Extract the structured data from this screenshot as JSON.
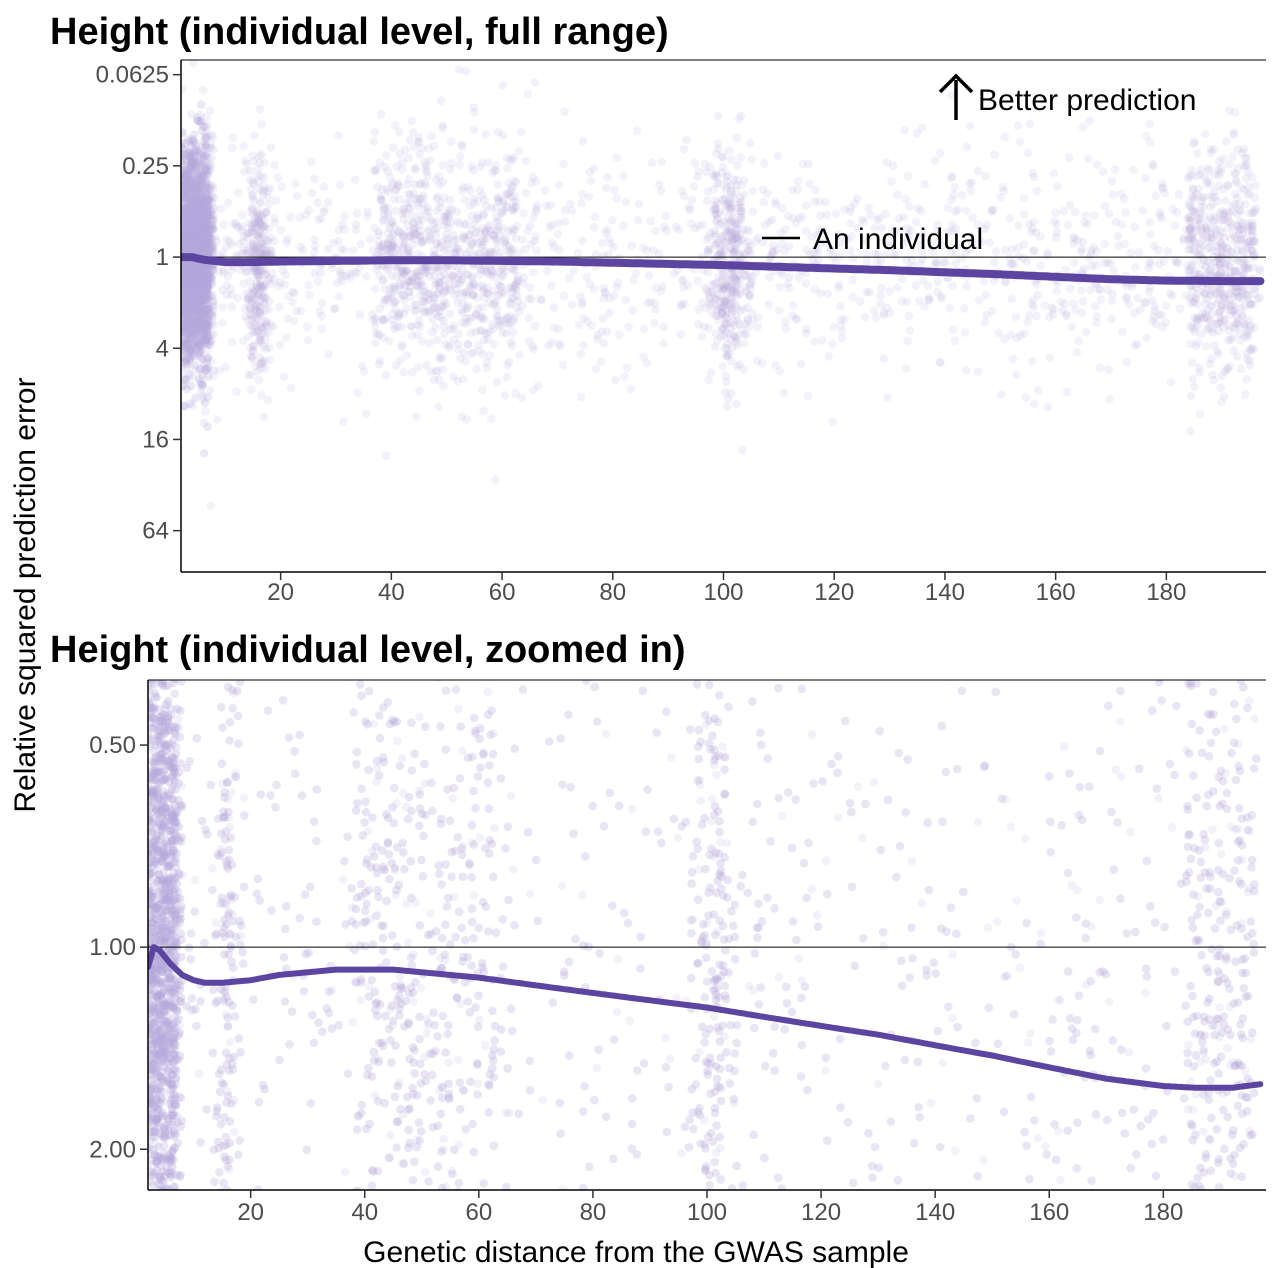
{
  "chart_data": [
    {
      "type": "scatter",
      "title": "Height (individual level, full range)",
      "xlabel": "Genetic distance from the GWAS sample",
      "ylabel": "Relative squared prediction error",
      "y_scale": "log2, reversed",
      "xlim": [
        2,
        198
      ],
      "ylim": [
        0.05,
        120
      ],
      "x_ticks": [
        20,
        40,
        60,
        80,
        100,
        120,
        140,
        160,
        180
      ],
      "x_tick_labels": [
        "20",
        "40",
        "60",
        "80",
        "100",
        "120",
        "140",
        "160",
        "180"
      ],
      "y_ticks": [
        0.0625,
        0.25,
        1,
        4,
        16,
        64
      ],
      "y_tick_labels": [
        "0.0625",
        "0.25",
        "1",
        "4",
        "16",
        "64"
      ],
      "reference_line_y": 1,
      "annotations": {
        "better_prediction": "Better prediction",
        "individual_legend": "An individual"
      },
      "point_color": "#b3a9db",
      "line_color": "#5b45a0",
      "trend_line": {
        "x": [
          2,
          4,
          6,
          10,
          15,
          20,
          30,
          40,
          50,
          60,
          70,
          80,
          90,
          100,
          110,
          120,
          130,
          140,
          150,
          160,
          170,
          180,
          190,
          197
        ],
        "y": [
          1.0,
          1.0,
          1.04,
          1.08,
          1.08,
          1.07,
          1.06,
          1.05,
          1.05,
          1.06,
          1.07,
          1.09,
          1.11,
          1.13,
          1.16,
          1.19,
          1.22,
          1.26,
          1.3,
          1.35,
          1.4,
          1.43,
          1.44,
          1.44
        ]
      }
    },
    {
      "type": "scatter",
      "title": "Height (individual level, zoomed in)",
      "xlabel": "Genetic distance from the GWAS sample",
      "ylabel": "Relative squared prediction error",
      "y_scale": "log2, reversed",
      "xlim": [
        2,
        198
      ],
      "ylim": [
        0.4,
        2.3
      ],
      "x_ticks": [
        20,
        40,
        60,
        80,
        100,
        120,
        140,
        160,
        180
      ],
      "x_tick_labels": [
        "20",
        "40",
        "60",
        "80",
        "100",
        "120",
        "140",
        "160",
        "180"
      ],
      "y_ticks": [
        0.5,
        1.0,
        2.0
      ],
      "y_tick_labels": [
        "0.50",
        "1.00",
        "2.00"
      ],
      "reference_line_y": 1,
      "point_color": "#b3a9db",
      "line_color": "#5b45a0",
      "trend_line": {
        "x": [
          2,
          3,
          4,
          6,
          8,
          10,
          12,
          15,
          20,
          25,
          30,
          35,
          40,
          45,
          50,
          60,
          70,
          80,
          90,
          100,
          110,
          120,
          130,
          140,
          150,
          160,
          170,
          180,
          186,
          192,
          197
        ],
        "y": [
          1.07,
          1.0,
          1.01,
          1.06,
          1.1,
          1.12,
          1.13,
          1.13,
          1.12,
          1.1,
          1.09,
          1.08,
          1.08,
          1.08,
          1.09,
          1.11,
          1.14,
          1.17,
          1.2,
          1.23,
          1.27,
          1.31,
          1.35,
          1.4,
          1.45,
          1.51,
          1.57,
          1.61,
          1.62,
          1.62,
          1.6
        ]
      }
    }
  ]
}
